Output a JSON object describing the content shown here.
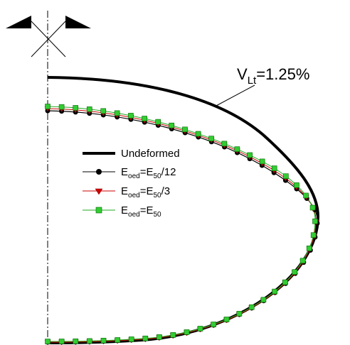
{
  "annotation": {
    "parts": [
      "V",
      "Lt",
      "=1.25%"
    ]
  },
  "legend": [
    {
      "parts": [
        "Undeformed"
      ]
    },
    {
      "parts": [
        "E",
        "oed",
        "=E",
        "50",
        "/12"
      ]
    },
    {
      "parts": [
        "E",
        "oed",
        "=E",
        "50",
        "/3"
      ]
    },
    {
      "parts": [
        "E",
        "oed",
        "=E",
        "50"
      ]
    }
  ]
}
